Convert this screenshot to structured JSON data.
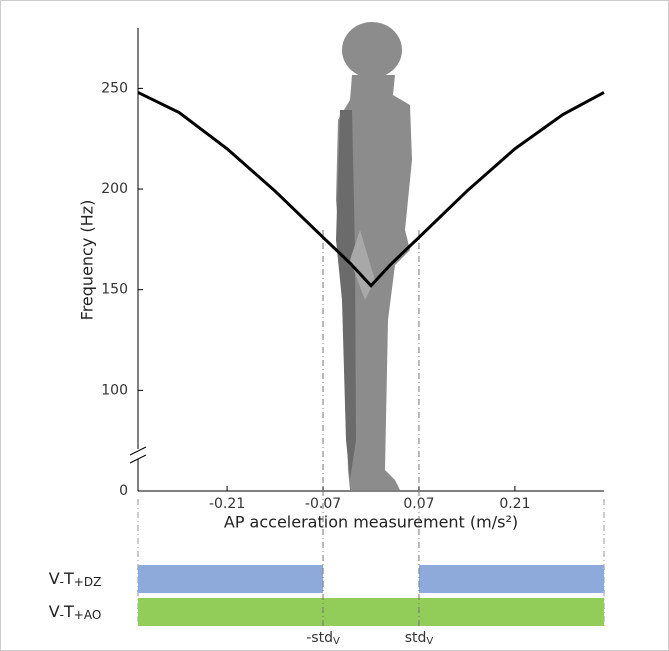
{
  "chart_data": {
    "type": "line",
    "y_label": "Frequency (Hz)",
    "x_label": "AP acceleration measurement (m/s²)",
    "x": [
      -0.34,
      -0.28,
      -0.21,
      -0.14,
      -0.07,
      -0.03,
      0,
      0.03,
      0.07,
      0.14,
      0.21,
      0.28,
      0.34
    ],
    "series": [
      {
        "color": "#000000",
        "values": [
          248,
          238,
          220,
          199,
          176,
          163,
          152,
          163,
          176,
          199,
          220,
          237,
          248
        ]
      }
    ],
    "xlim": [
      -0.34,
      0.34
    ],
    "xticks": [
      -0.21,
      -0.07,
      0.07,
      0.21
    ],
    "ylim": [
      0,
      280
    ],
    "y_break": [
      0,
      50
    ],
    "yticks": [
      0,
      100,
      150,
      200,
      250
    ],
    "std_lines": [
      {
        "x": -0.07,
        "label": [
          "-std",
          "V"
        ]
      },
      {
        "x": 0.07,
        "label": [
          "std",
          "V"
        ]
      }
    ],
    "rows": [
      {
        "label": [
          "V",
          "-",
          "T",
          "+DZ"
        ],
        "color": "#8eaadb",
        "segments": [
          [
            -0.34,
            -0.07
          ],
          [
            0.07,
            0.34
          ]
        ]
      },
      {
        "label": [
          "V",
          "-",
          "T",
          "+AO"
        ],
        "color": "#92cd5a",
        "segments": [
          [
            -0.34,
            0.34
          ]
        ]
      }
    ]
  }
}
